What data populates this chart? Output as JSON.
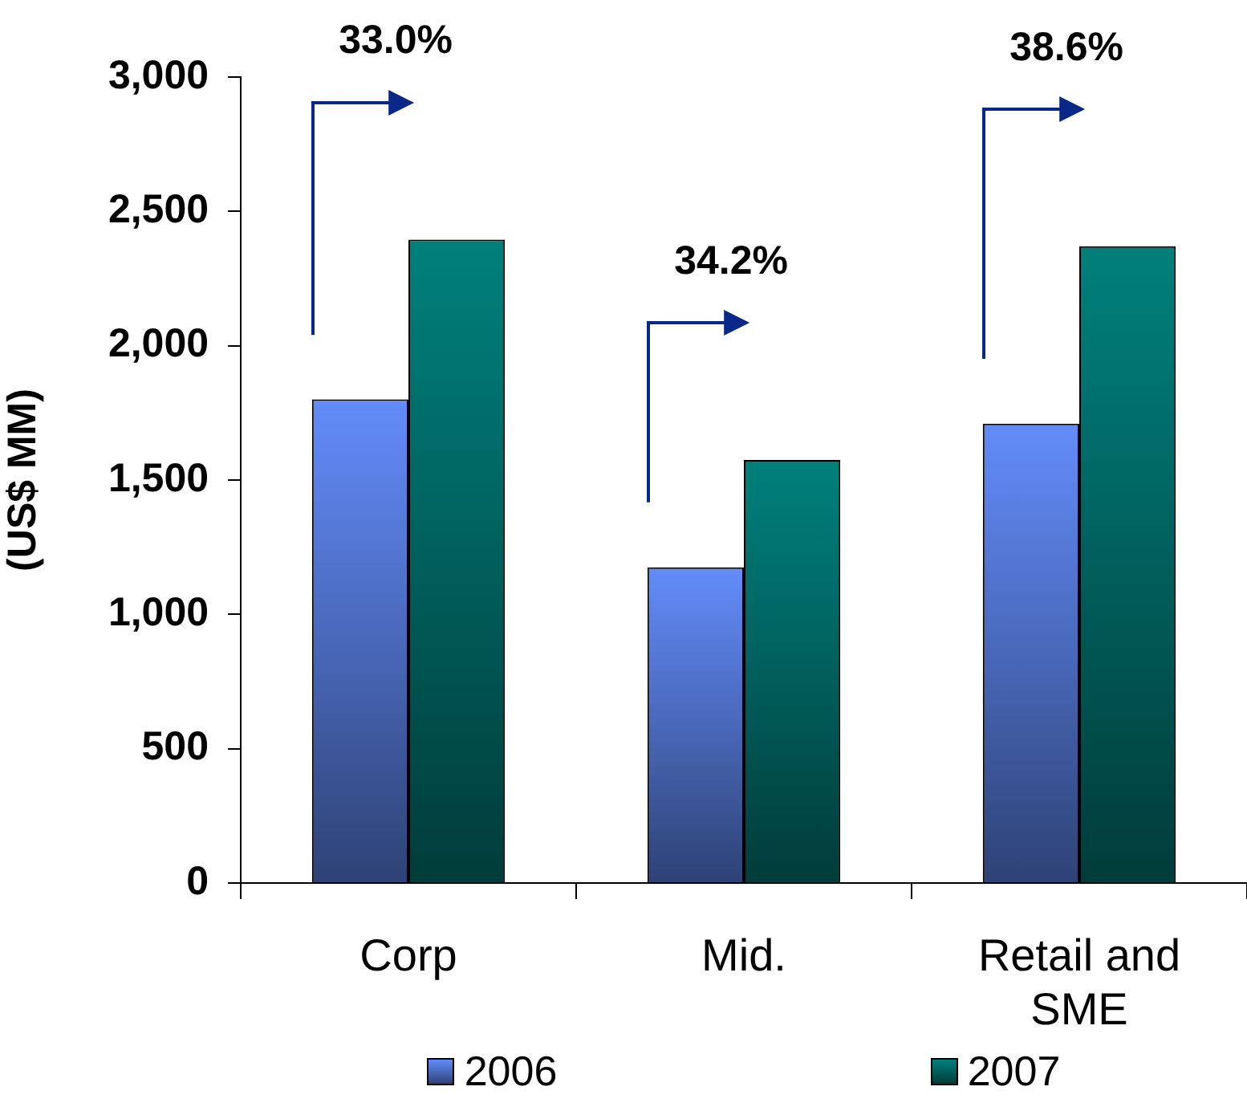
{
  "chart_data": {
    "type": "bar",
    "categories": [
      "Corp",
      "Mid.",
      "Retail and SME"
    ],
    "series": [
      {
        "name": "2006",
        "color": "#4968b9",
        "values": [
          1800,
          1175,
          1710
        ]
      },
      {
        "name": "2007",
        "color": "#005f5c",
        "values": [
          2395,
          1575,
          2370
        ]
      }
    ],
    "ylabel": "(US$ MM)",
    "ylim": [
      0,
      3000
    ],
    "yticks": [
      0,
      500,
      {
        "value": 1000,
        "label": "1,000"
      },
      {
        "value": 1500,
        "label": "1,500"
      },
      {
        "value": 2000,
        "label": "2,000"
      },
      {
        "value": 2500,
        "label": "2,500"
      },
      {
        "value": 3000,
        "label": "3,000"
      }
    ],
    "annotations": [
      "33.0%",
      "34.2%",
      "38.6%"
    ],
    "legend": "bottom",
    "grid": false
  }
}
